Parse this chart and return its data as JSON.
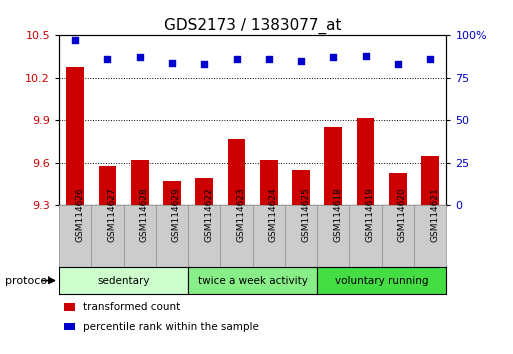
{
  "title": "GDS2173 / 1383077_at",
  "samples": [
    "GSM114626",
    "GSM114627",
    "GSM114628",
    "GSM114629",
    "GSM114622",
    "GSM114623",
    "GSM114624",
    "GSM114625",
    "GSM114618",
    "GSM114619",
    "GSM114620",
    "GSM114621"
  ],
  "transformed_count": [
    10.28,
    9.58,
    9.62,
    9.47,
    9.49,
    9.77,
    9.62,
    9.55,
    9.85,
    9.92,
    9.53,
    9.65
  ],
  "percentile_rank": [
    97,
    86,
    87,
    84,
    83,
    86,
    86,
    85,
    87,
    88,
    83,
    86
  ],
  "ylim_left": [
    9.3,
    10.5
  ],
  "ylim_right": [
    0,
    100
  ],
  "yticks_left": [
    9.3,
    9.6,
    9.9,
    10.2,
    10.5
  ],
  "ytick_labels_left": [
    "9.3",
    "9.6",
    "9.9",
    "10.2",
    "10.5"
  ],
  "yticks_right": [
    0,
    25,
    50,
    75,
    100
  ],
  "ytick_labels_right": [
    "0",
    "25",
    "50",
    "75",
    "100%"
  ],
  "bar_color": "#cc0000",
  "dot_color": "#0000cc",
  "bar_baseline": 9.3,
  "groups": [
    {
      "label": "sedentary",
      "start": 0,
      "end": 4,
      "color": "#ccffcc"
    },
    {
      "label": "twice a week activity",
      "start": 4,
      "end": 8,
      "color": "#88ee88"
    },
    {
      "label": "voluntary running",
      "start": 8,
      "end": 12,
      "color": "#44dd44"
    }
  ],
  "protocol_label": "protocol",
  "legend_items": [
    {
      "color": "#cc0000",
      "label": "transformed count"
    },
    {
      "color": "#0000cc",
      "label": "percentile rank within the sample"
    }
  ],
  "grid_color": "black",
  "tick_label_color_left": "#cc0000",
  "tick_label_color_right": "#0000cc",
  "sample_box_color": "#cccccc",
  "sample_box_edge": "#888888",
  "bg_color": "#ffffff"
}
